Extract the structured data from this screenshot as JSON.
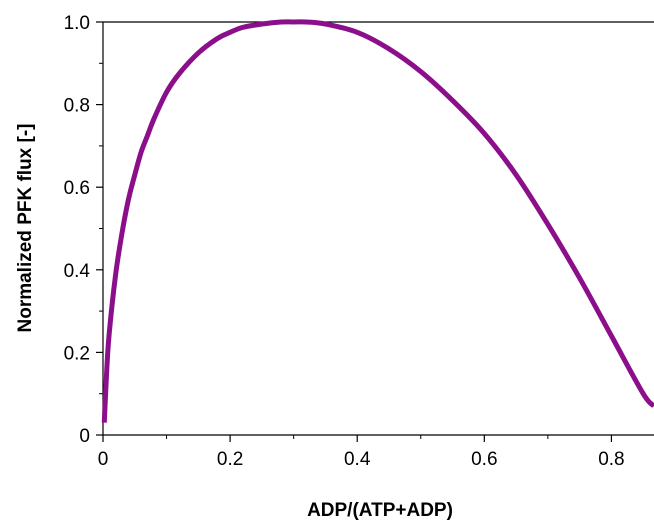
{
  "chart_data": {
    "type": "line",
    "title": "",
    "xlabel": "ADP/(ATP+ADP)",
    "ylabel": "Normalized PFK flux [-]",
    "xlim": [
      0,
      0.867
    ],
    "ylim": [
      0,
      1.0
    ],
    "x_ticks": [
      {
        "value": 0,
        "label": "0"
      },
      {
        "value": 0.2,
        "label": "0.2"
      },
      {
        "value": 0.4,
        "label": "0.4"
      },
      {
        "value": 0.6,
        "label": "0.6"
      },
      {
        "value": 0.8,
        "label": "0.8"
      }
    ],
    "y_ticks": [
      {
        "value": 0,
        "label": "0"
      },
      {
        "value": 0.2,
        "label": "0.2"
      },
      {
        "value": 0.4,
        "label": "0.4"
      },
      {
        "value": 0.6,
        "label": "0.6"
      },
      {
        "value": 0.8,
        "label": "0.8"
      },
      {
        "value": 1.0,
        "label": "1.0"
      }
    ],
    "x_minor_ticks": [
      0.1,
      0.3,
      0.5,
      0.7
    ],
    "y_minor_ticks": [
      0.1,
      0.3,
      0.5,
      0.7,
      0.9
    ],
    "grid": false,
    "series": [
      {
        "color": "#8b0f8b",
        "x": [
          0.002,
          0.006,
          0.01,
          0.02,
          0.03,
          0.04,
          0.05,
          0.06,
          0.07,
          0.08,
          0.1,
          0.12,
          0.15,
          0.18,
          0.2,
          0.22,
          0.25,
          0.28,
          0.3,
          0.32,
          0.35,
          0.4,
          0.45,
          0.5,
          0.55,
          0.6,
          0.65,
          0.7,
          0.75,
          0.8,
          0.85,
          0.867
        ],
        "y": [
          0.03,
          0.16,
          0.25,
          0.39,
          0.49,
          0.57,
          0.63,
          0.685,
          0.725,
          0.765,
          0.83,
          0.875,
          0.925,
          0.96,
          0.975,
          0.987,
          0.995,
          1.0,
          1.0,
          1.0,
          0.995,
          0.975,
          0.935,
          0.88,
          0.81,
          0.73,
          0.63,
          0.51,
          0.38,
          0.24,
          0.1,
          0.07
        ]
      }
    ]
  }
}
